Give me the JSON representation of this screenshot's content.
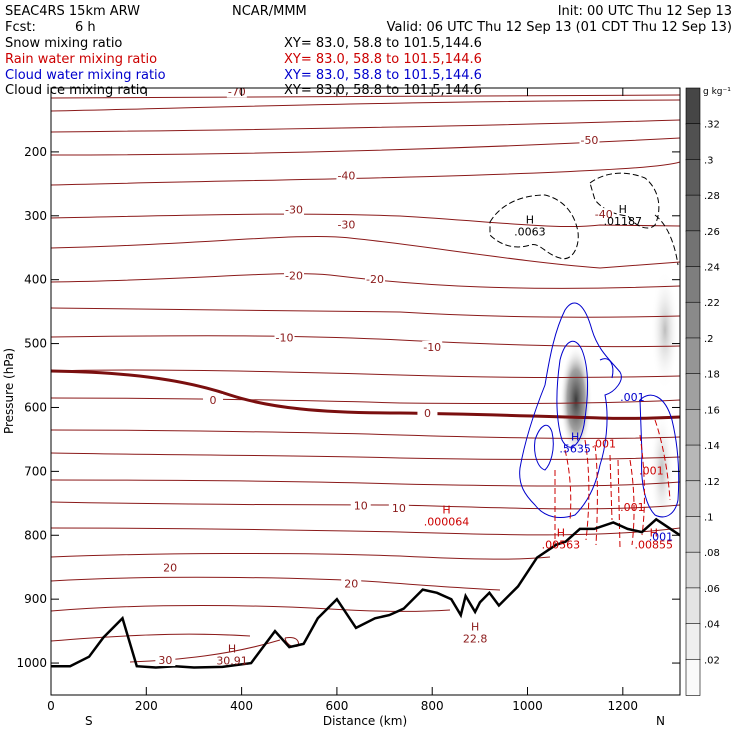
{
  "header": {
    "model": "SEAC4RS 15km ARW",
    "org": "NCAR/MMM",
    "init": "Init: 00 UTC Thu 12 Sep 13",
    "fcst_label": "Fcst:",
    "fcst_value": "6 h",
    "valid": "Valid: 06 UTC Thu 12 Sep 13 (01 CDT Thu 12 Sep 13)"
  },
  "fields": [
    {
      "name": "Snow mixing ratio",
      "xy": "XY=  83.0, 58.8 to 101.5,144.6",
      "color": "#000000"
    },
    {
      "name": "Rain water mixing ratio",
      "xy": "XY=  83.0, 58.8 to 101.5,144.6",
      "color": "#cc0000"
    },
    {
      "name": "Cloud water mixing ratio",
      "xy": "XY=  83.0, 58.8 to 101.5,144.6",
      "color": "#0000cc"
    },
    {
      "name": "Cloud ice mixing ratio",
      "xy": "XY=  83.0, 58.8 to 101.5,144.6",
      "color": "#000000"
    }
  ],
  "colorbar": {
    "unit": "g kg⁻¹",
    "ticks": [
      ".32",
      ".3",
      ".28",
      ".26",
      ".24",
      ".22",
      ".2",
      ".18",
      ".16",
      ".14",
      ".12",
      ".1",
      ".08",
      ".06",
      ".04",
      ".02"
    ]
  },
  "chart_data": {
    "type": "line",
    "xlabel": "Distance (km)",
    "ylabel": "Pressure (hPa)",
    "xlim": [
      0,
      1320
    ],
    "ylim": [
      1050,
      100
    ],
    "x_ticks": [
      0,
      200,
      400,
      600,
      800,
      1000,
      1200
    ],
    "y_ticks": [
      1000,
      900,
      800,
      700,
      600,
      500,
      400,
      300,
      200
    ],
    "x_end_labels": {
      "left": "S",
      "right": "N"
    },
    "temperature_contours": [
      {
        "label": "-70",
        "x": 390,
        "p": 110
      },
      {
        "label": "-50",
        "x": 1130,
        "p": 186
      },
      {
        "label": "-40",
        "x": 620,
        "p": 242
      },
      {
        "label": "-40",
        "x": 1160,
        "p": 302
      },
      {
        "label": "-30",
        "x": 510,
        "p": 295
      },
      {
        "label": "-30",
        "x": 620,
        "p": 318
      },
      {
        "label": "-20",
        "x": 510,
        "p": 398
      },
      {
        "label": "-20",
        "x": 680,
        "p": 404
      },
      {
        "label": "-10",
        "x": 490,
        "p": 495
      },
      {
        "label": "-10",
        "x": 800,
        "p": 510
      },
      {
        "label": "0",
        "x": 340,
        "p": 593
      },
      {
        "label": "0",
        "x": 790,
        "p": 613
      },
      {
        "label": "10",
        "x": 650,
        "p": 758
      },
      {
        "label": "10",
        "x": 730,
        "p": 762
      },
      {
        "label": "20",
        "x": 250,
        "p": 855
      },
      {
        "label": "20",
        "x": 630,
        "p": 880
      },
      {
        "label": "30",
        "x": 240,
        "p": 1000
      }
    ],
    "extrema": [
      {
        "kind": "H",
        "value": ".0063",
        "x": 1005,
        "p": 318,
        "field": "snow"
      },
      {
        "kind": "H",
        "value": ".01187",
        "x": 1200,
        "p": 302,
        "field": "snow"
      },
      {
        "kind": "H",
        "value": ".5635",
        "x": 1100,
        "p": 658,
        "field": "cloud"
      },
      {
        "kind": "H",
        "value": ".000064",
        "x": 830,
        "p": 772,
        "field": "rain"
      },
      {
        "kind": "H",
        "value": ".00563",
        "x": 1070,
        "p": 808,
        "field": "rain"
      },
      {
        "kind": "H",
        "value": ".00855",
        "x": 1265,
        "p": 808,
        "field": "rain"
      },
      {
        "kind": "H",
        "value": "30.91",
        "x": 380,
        "p": 990,
        "field": "temperature"
      },
      {
        "kind": "H",
        "value": "22.8",
        "x": 890,
        "p": 955,
        "field": "temperature"
      }
    ],
    "contour_labels": [
      {
        "value": ".001",
        "x": 1220,
        "p": 590,
        "field": "cloud"
      },
      {
        "value": ".001",
        "x": 1160,
        "p": 663,
        "field": "rain"
      },
      {
        "value": ".001",
        "x": 1260,
        "p": 705,
        "field": "rain"
      },
      {
        "value": ".001",
        "x": 1220,
        "p": 762,
        "field": "rain"
      },
      {
        "value": ".001",
        "x": 1280,
        "p": 808,
        "field": "cloud"
      }
    ],
    "terrain_pressure": {
      "x": [
        0,
        40,
        80,
        110,
        150,
        180,
        220,
        260,
        300,
        360,
        420,
        470,
        500,
        530,
        560,
        600,
        640,
        680,
        710,
        740,
        780,
        810,
        840,
        860,
        870,
        890,
        900,
        920,
        940,
        980,
        1020,
        1060,
        1080,
        1110,
        1140,
        1180,
        1210,
        1240,
        1270,
        1290,
        1320
      ],
      "p": [
        1005,
        1005,
        990,
        960,
        930,
        1005,
        1007,
        1005,
        1007,
        1006,
        1000,
        950,
        975,
        970,
        930,
        900,
        945,
        930,
        925,
        915,
        885,
        890,
        900,
        925,
        895,
        920,
        905,
        890,
        910,
        880,
        835,
        815,
        810,
        790,
        790,
        780,
        790,
        795,
        775,
        785,
        800
      ]
    }
  }
}
